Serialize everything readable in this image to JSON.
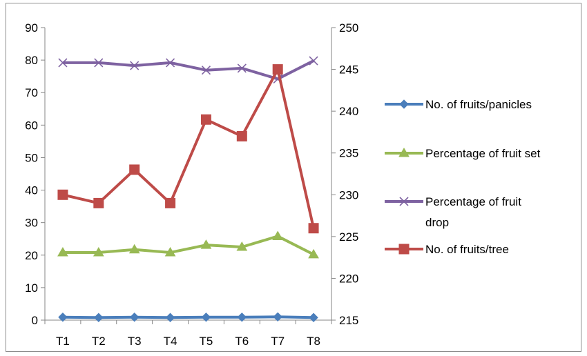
{
  "chart_data": {
    "type": "line",
    "categories": [
      "T1",
      "T2",
      "T3",
      "T4",
      "T5",
      "T6",
      "T7",
      "T8"
    ],
    "y_left": {
      "min": 0,
      "max": 90,
      "step": 10,
      "ticks": [
        "0",
        "10",
        "20",
        "30",
        "40",
        "50",
        "60",
        "70",
        "80",
        "90"
      ]
    },
    "y_right": {
      "min": 215,
      "max": 250,
      "step": 5,
      "ticks": [
        "215",
        "220",
        "225",
        "230",
        "235",
        "240",
        "245",
        "250"
      ]
    },
    "grid": false,
    "legend_position": "right",
    "series": [
      {
        "name": "No. of fruits/panicles",
        "axis": "left",
        "color": "#4a7ebb",
        "marker": "diamond",
        "values": [
          0.9,
          0.8,
          0.9,
          0.8,
          0.9,
          0.9,
          1.0,
          0.8
        ]
      },
      {
        "name": "Percentage  of fruit set",
        "axis": "left",
        "color": "#98b954",
        "marker": "triangle",
        "values": [
          20.8,
          20.8,
          21.7,
          20.8,
          23.1,
          22.5,
          25.8,
          20.2
        ]
      },
      {
        "name": "Percentage  of fruit drop",
        "legend_lines": [
          "Percentage  of fruit",
          "drop"
        ],
        "axis": "left",
        "color": "#7e62a1",
        "marker": "x",
        "values": [
          79.2,
          79.2,
          78.3,
          79.2,
          76.9,
          77.5,
          74.2,
          79.8
        ]
      },
      {
        "name": "No. of fruits/tree",
        "axis": "right",
        "color": "#be4b48",
        "marker": "square",
        "values": [
          230,
          229,
          233,
          229,
          239,
          237,
          245,
          226
        ]
      }
    ]
  }
}
